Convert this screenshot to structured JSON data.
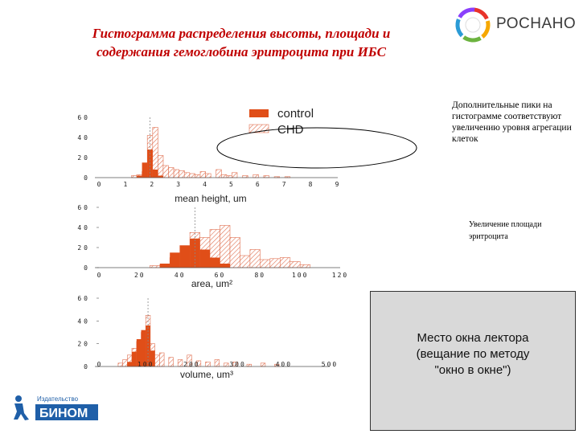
{
  "slide": {
    "title_line1": "Гистограмма распределения высоты, площади и",
    "title_line2": "содержания гемоглобина эритроцита при ИБС",
    "logo_text": "РОСНАНО",
    "note1": "Дополнительные пики на гистограмме соответствуют увеличению уровня агрегации клеток",
    "note2": "Увеличение площади эритроцита",
    "lector_line1": "Место окна лектора",
    "lector_line2": "(вещание по методу",
    "lector_line3": "\"окно в окне\")",
    "publisher_small": "Издательство",
    "publisher_name": "БИНОМ"
  },
  "colors": {
    "title": "#c00000",
    "control": "#e04e18",
    "chd_hatch": "#e07050",
    "logo_ring": [
      "#e8332a",
      "#f6a800",
      "#6cb33f",
      "#2b9bd6",
      "#8a3ffc"
    ],
    "publisher": "#1f5fa8"
  },
  "chart_data": [
    {
      "type": "bar",
      "xlabel": "mean height, um",
      "xlim": [
        0,
        9
      ],
      "ylim": [
        0,
        60
      ],
      "xticks": [
        "0",
        "1",
        "2",
        "3",
        "4",
        "5",
        "6",
        "7",
        "8",
        "9"
      ],
      "yticks": [
        "0",
        "20",
        "40",
        "60"
      ],
      "legend": [
        "control",
        "CHD"
      ],
      "legend_position": "top-right",
      "series": [
        {
          "name": "control",
          "bin_width": 0.2,
          "x": [
            1.4,
            1.6,
            1.8,
            2.0,
            2.2
          ],
          "values": [
            2,
            15,
            28,
            8,
            2
          ]
        },
        {
          "name": "CHD",
          "bin_width": 0.2,
          "x": [
            1.2,
            1.4,
            1.6,
            1.8,
            2.0,
            2.2,
            2.4,
            2.6,
            2.8,
            3.0,
            3.2,
            3.4,
            3.6,
            3.8,
            4.0,
            4.4,
            4.6,
            4.8,
            5.0,
            5.4,
            5.8,
            6.2,
            6.6,
            7.0
          ],
          "values": [
            2,
            3,
            6,
            42,
            50,
            22,
            12,
            10,
            8,
            7,
            5,
            4,
            3,
            6,
            4,
            8,
            3,
            2,
            5,
            2,
            3,
            2,
            1,
            1
          ]
        }
      ]
    },
    {
      "type": "bar",
      "xlabel": "area, um²",
      "xlim": [
        0,
        120
      ],
      "ylim": [
        0,
        60
      ],
      "xticks": [
        "0",
        "20",
        "40",
        "60",
        "80",
        "100",
        "120"
      ],
      "yticks": [
        "0",
        "20",
        "40",
        "60"
      ],
      "series": [
        {
          "name": "control",
          "bin_width": 5,
          "x": [
            30,
            35,
            40,
            45,
            50,
            55,
            60
          ],
          "values": [
            4,
            15,
            22,
            29,
            18,
            10,
            4
          ]
        },
        {
          "name": "CHD",
          "bin_width": 5,
          "x": [
            25,
            30,
            35,
            40,
            45,
            50,
            55,
            60,
            65,
            70,
            75,
            80,
            85,
            90,
            95,
            100
          ],
          "values": [
            2,
            3,
            10,
            22,
            35,
            30,
            38,
            42,
            30,
            12,
            18,
            8,
            9,
            10,
            6,
            3
          ]
        }
      ]
    },
    {
      "type": "bar",
      "xlabel": "volume, um³",
      "xlim": [
        0,
        500
      ],
      "ylim": [
        0,
        60
      ],
      "xticks": [
        "0",
        "100",
        "200",
        "300",
        "400",
        "500"
      ],
      "yticks": [
        "0",
        "20",
        "40",
        "60"
      ],
      "series": [
        {
          "name": "control",
          "bin_width": 10,
          "x": [
            60,
            70,
            80,
            90,
            100,
            110
          ],
          "values": [
            4,
            13,
            24,
            32,
            36,
            14
          ]
        },
        {
          "name": "CHD",
          "bin_width": 10,
          "x": [
            40,
            50,
            60,
            70,
            80,
            90,
            100,
            110,
            120,
            130,
            150,
            170,
            190,
            210,
            230,
            250,
            270,
            290,
            320,
            350,
            380
          ],
          "values": [
            3,
            6,
            10,
            16,
            22,
            30,
            45,
            20,
            10,
            12,
            8,
            6,
            10,
            5,
            4,
            6,
            3,
            4,
            2,
            3,
            2
          ]
        }
      ]
    }
  ]
}
